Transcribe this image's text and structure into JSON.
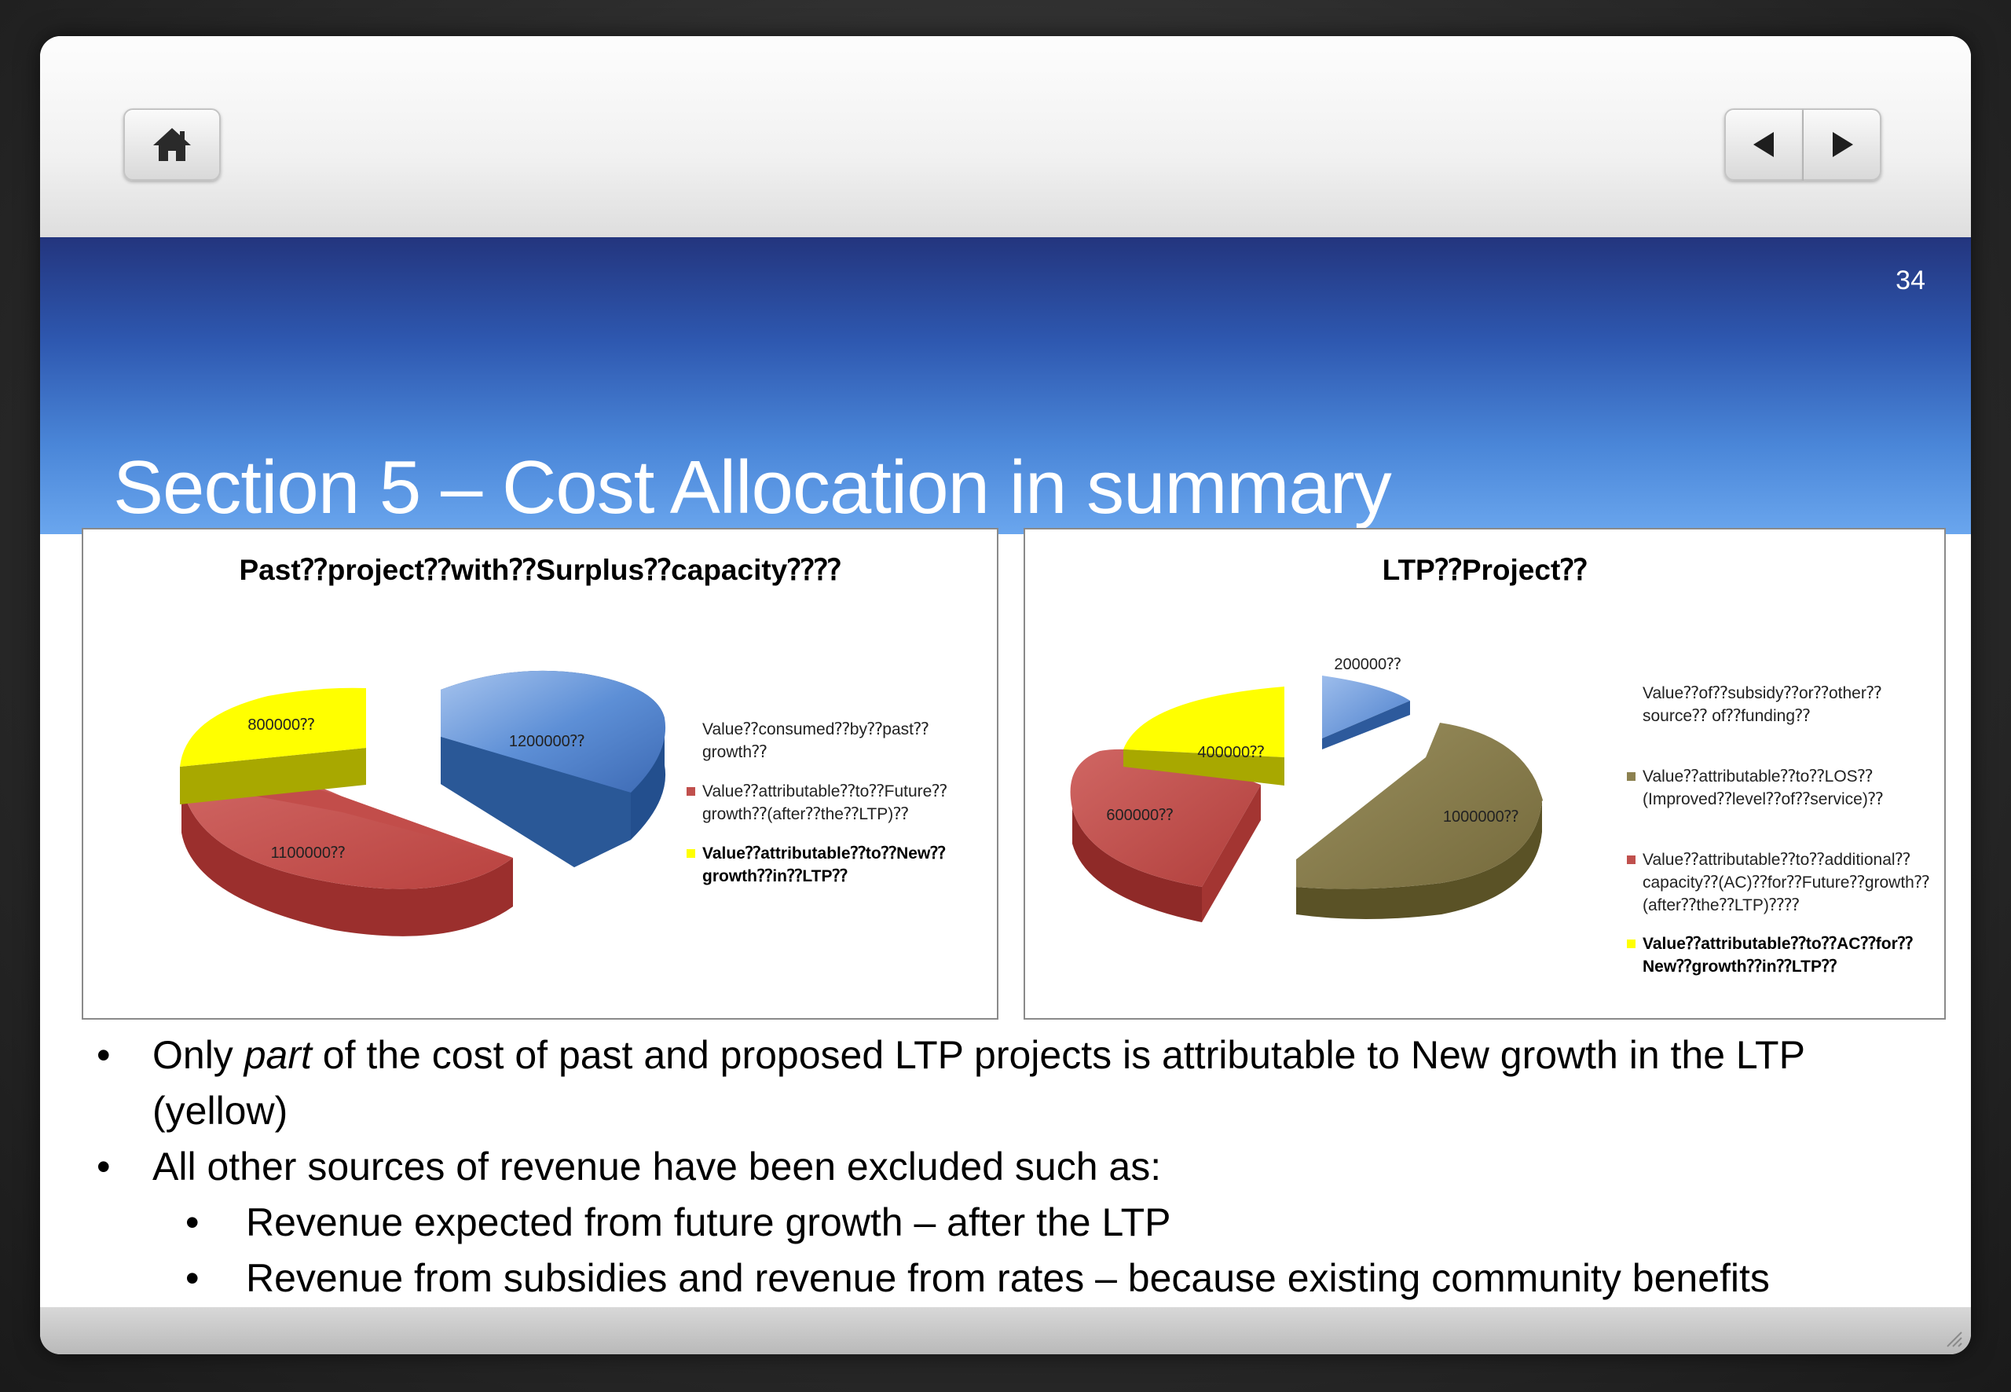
{
  "slide": {
    "number": "34",
    "title": "Section 5 – Cost Allocation in summary"
  },
  "nav": {
    "home_icon": "home-icon",
    "prev_icon": "triangle-left-icon",
    "next_icon": "triangle-right-icon"
  },
  "colors": {
    "band": "#2e58b0",
    "blue_slice": "#5b8fd8",
    "red_slice": "#c0504d",
    "yellow_slice": "#ffff00",
    "olive_slice": "#8c8150"
  },
  "chart_data": [
    {
      "type": "pie",
      "title": "Past⁇project⁇with⁇Surplus⁇capacity⁇⁇",
      "slices": [
        {
          "label": "1200000⁇",
          "value": 1200000,
          "color": "#5b8fd8"
        },
        {
          "label": "1100000⁇",
          "value": 1100000,
          "color": "#c0504d"
        },
        {
          "label": "800000⁇",
          "value": 800000,
          "color": "#ffff00"
        }
      ],
      "legend": [
        {
          "text": "Value⁇consumed⁇by⁇past⁇growth⁇",
          "color": "#5b8fd8",
          "swatch": false,
          "bold": false
        },
        {
          "text": "Value⁇attributable⁇to⁇Future⁇ growth⁇(after⁇the⁇LTP)⁇",
          "color": "#c0504d",
          "swatch": true,
          "bold": false
        },
        {
          "text": "Value⁇attributable⁇to⁇New⁇ growth⁇in⁇LTP⁇",
          "color": "#ffff00",
          "swatch": true,
          "bold": true
        }
      ],
      "legend_placement": "right"
    },
    {
      "type": "pie",
      "title": "LTP⁇Project⁇",
      "slices": [
        {
          "label": "200000⁇",
          "value": 200000,
          "color": "#5b8fd8"
        },
        {
          "label": "1000000⁇",
          "value": 1000000,
          "color": "#8c8150"
        },
        {
          "label": "600000⁇",
          "value": 600000,
          "color": "#c0504d"
        },
        {
          "label": "400000⁇",
          "value": 400000,
          "color": "#ffff00"
        }
      ],
      "legend": [
        {
          "text": "Value⁇of⁇subsidy⁇or⁇other⁇source⁇ of⁇funding⁇",
          "color": "#5b8fd8",
          "swatch": false,
          "bold": false
        },
        {
          "text": "Value⁇attributable⁇to⁇LOS⁇ (Improved⁇level⁇of⁇service)⁇",
          "color": "#8c8150",
          "swatch": true,
          "bold": false
        },
        {
          "text": "Value⁇attributable⁇to⁇additional⁇ capacity⁇(AC)⁇for⁇Future⁇growth⁇ (after⁇the⁇LTP)⁇⁇",
          "color": "#c0504d",
          "swatch": true,
          "bold": false
        },
        {
          "text": "Value⁇attributable⁇to⁇AC⁇for⁇ New⁇growth⁇in⁇LTP⁇",
          "color": "#ffff00",
          "swatch": true,
          "bold": true
        }
      ],
      "legend_placement": "right"
    }
  ],
  "bullets": {
    "b1_pre": "Only ",
    "b1_em": "part",
    "b1_post": " of the cost of past and proposed LTP projects is attributable to New growth in the LTP (yellow)",
    "b2": "All other sources of revenue have been excluded such as:",
    "b3": "Revenue expected from future growth – after the LTP",
    "b4": "Revenue from subsidies and revenue from rates – because existing community benefits",
    "marker": "•"
  }
}
